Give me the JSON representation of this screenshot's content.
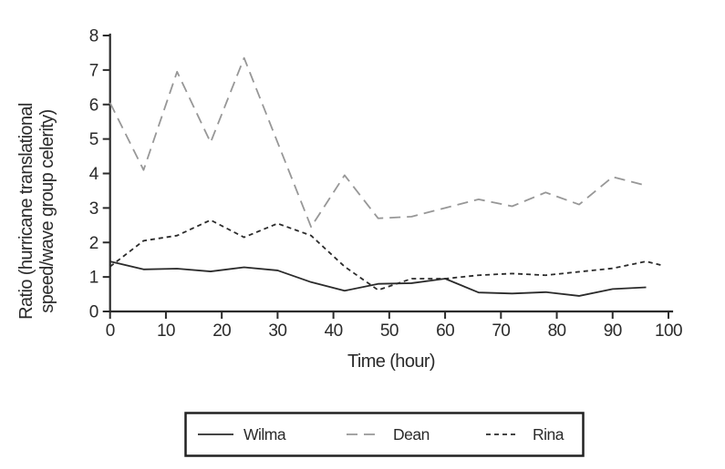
{
  "figure": {
    "background": "#ffffff"
  },
  "chart_data": {
    "type": "line",
    "title": "",
    "xlabel": "Time (hour)",
    "ylabel": "Ratio (hurricane translational speed/wave group celerity)",
    "ylabel_lines": [
      "Ratio (hurricane translational",
      "speed/wave group celerity)"
    ],
    "xlim": [
      0,
      100
    ],
    "ylim": [
      0,
      8
    ],
    "x_ticks": [
      0,
      10,
      20,
      30,
      40,
      50,
      60,
      70,
      80,
      90,
      100
    ],
    "y_ticks": [
      0,
      1,
      2,
      3,
      4,
      5,
      6,
      7,
      8
    ],
    "grid": false,
    "legend_position": "bottom-center",
    "axis_color": "#2b2b2b",
    "text_color": "#2b2b2b",
    "series": [
      {
        "name": "Wilma",
        "color": "#2b2b2b",
        "dash": "solid",
        "x": [
          0,
          6,
          12,
          18,
          24,
          30,
          36,
          42,
          48,
          54,
          60,
          66,
          72,
          78,
          84,
          90,
          96
        ],
        "values": [
          1.45,
          1.22,
          1.24,
          1.16,
          1.28,
          1.19,
          0.85,
          0.6,
          0.8,
          0.82,
          0.95,
          0.55,
          0.52,
          0.56,
          0.45,
          0.65,
          0.7
        ]
      },
      {
        "name": "Dean",
        "color": "#979797",
        "dash": "long-dash",
        "x": [
          0,
          6,
          12,
          18,
          24,
          30,
          36,
          42,
          48,
          54,
          60,
          66,
          72,
          78,
          84,
          90,
          96
        ],
        "values": [
          6.05,
          4.1,
          6.95,
          4.9,
          7.35,
          4.9,
          2.45,
          3.95,
          2.7,
          2.75,
          3.0,
          3.25,
          3.05,
          3.45,
          3.1,
          3.9,
          3.65
        ]
      },
      {
        "name": "Rina",
        "color": "#2b2b2b",
        "dash": "short-dash",
        "x": [
          0,
          6,
          12,
          18,
          24,
          30,
          36,
          42,
          48,
          54,
          60,
          66,
          72,
          78,
          84,
          90,
          96,
          99
        ],
        "values": [
          1.3,
          2.05,
          2.2,
          2.65,
          2.15,
          2.55,
          2.2,
          1.3,
          0.62,
          0.95,
          0.95,
          1.05,
          1.1,
          1.05,
          1.15,
          1.25,
          1.45,
          1.33
        ]
      }
    ]
  }
}
